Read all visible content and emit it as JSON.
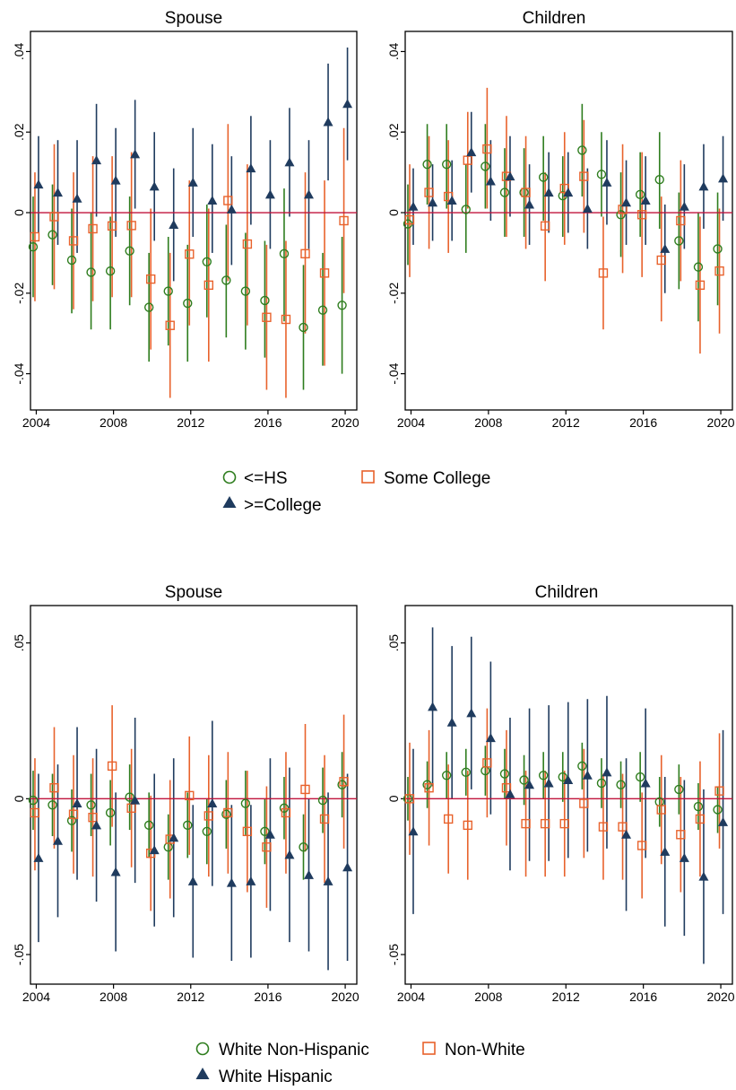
{
  "chart_data": [
    {
      "type": "scatter",
      "title": "Spouse",
      "panel": "education",
      "x": [
        2004,
        2005,
        2006,
        2007,
        2008,
        2009,
        2010,
        2011,
        2012,
        2013,
        2014,
        2015,
        2016,
        2017,
        2018,
        2019,
        2020
      ],
      "xticks": [
        2004,
        2008,
        2012,
        2016,
        2020
      ],
      "xlim": [
        2003.7,
        2020.6
      ],
      "ylim": [
        -0.049,
        0.045
      ],
      "yticks": [
        -0.04,
        -0.02,
        0,
        0.02,
        0.04
      ],
      "ytick_labels": [
        "-.04",
        "-.02",
        "0",
        ".02",
        ".04"
      ],
      "series": [
        {
          "name": "<=HS",
          "marker": "circle",
          "color": "#2e7d1e",
          "values": [
            -0.0085,
            -0.0055,
            -0.0118,
            -0.0148,
            -0.0145,
            -0.0095,
            -0.0235,
            -0.0195,
            -0.0225,
            -0.0122,
            -0.0168,
            -0.0195,
            -0.0218,
            -0.0102,
            -0.0285,
            -0.0242,
            -0.023
          ],
          "lower": [
            -0.021,
            -0.018,
            -0.025,
            -0.029,
            -0.029,
            -0.023,
            -0.037,
            -0.033,
            -0.037,
            -0.026,
            -0.031,
            -0.034,
            -0.036,
            -0.027,
            -0.044,
            -0.038,
            -0.04
          ],
          "upper": [
            0.004,
            0.007,
            0.001,
            0.0,
            -0.001,
            0.004,
            -0.01,
            -0.006,
            -0.008,
            0.002,
            -0.003,
            -0.005,
            -0.007,
            0.006,
            -0.013,
            -0.01,
            -0.006
          ]
        },
        {
          "name": "Some College",
          "marker": "square",
          "color": "#e8622c",
          "values": [
            -0.006,
            -0.001,
            -0.007,
            -0.004,
            -0.0033,
            -0.0032,
            -0.0165,
            -0.028,
            -0.0103,
            -0.018,
            0.003,
            -0.0078,
            -0.026,
            -0.0265,
            -0.0102,
            -0.015,
            -0.002
          ],
          "lower": [
            -0.022,
            -0.019,
            -0.024,
            -0.022,
            -0.021,
            -0.021,
            -0.034,
            -0.046,
            -0.028,
            -0.037,
            -0.017,
            -0.028,
            -0.044,
            -0.046,
            -0.03,
            -0.038,
            -0.02
          ],
          "upper": [
            0.01,
            0.017,
            0.01,
            0.014,
            0.014,
            0.015,
            0.001,
            -0.01,
            0.008,
            0.001,
            0.022,
            0.012,
            -0.008,
            -0.007,
            0.01,
            0.008,
            0.021
          ]
        },
        {
          "name": ">=College",
          "marker": "triangle",
          "color": "#1f3b5e",
          "values": [
            0.007,
            0.005,
            0.0035,
            0.013,
            0.008,
            0.0145,
            0.0065,
            -0.003,
            0.0075,
            0.003,
            0.0008,
            0.011,
            0.0045,
            0.0125,
            0.0045,
            0.0225,
            0.027
          ],
          "lower": [
            -0.005,
            -0.008,
            -0.01,
            -0.001,
            -0.006,
            0.001,
            -0.007,
            -0.017,
            -0.006,
            -0.01,
            -0.013,
            -0.003,
            -0.009,
            -0.001,
            -0.009,
            0.008,
            0.013
          ],
          "upper": [
            0.019,
            0.018,
            0.018,
            0.027,
            0.021,
            0.028,
            0.02,
            0.011,
            0.021,
            0.017,
            0.014,
            0.024,
            0.018,
            0.026,
            0.018,
            0.037,
            0.041
          ]
        }
      ]
    },
    {
      "type": "scatter",
      "title": "Children",
      "panel": "education",
      "x": [
        2004,
        2005,
        2006,
        2007,
        2008,
        2009,
        2010,
        2011,
        2012,
        2013,
        2014,
        2015,
        2016,
        2017,
        2018,
        2019,
        2020
      ],
      "xticks": [
        2004,
        2008,
        2012,
        2016,
        2020
      ],
      "xlim": [
        2003.7,
        2020.6
      ],
      "ylim": [
        -0.049,
        0.045
      ],
      "yticks": [
        -0.04,
        -0.02,
        0,
        0.02,
        0.04
      ],
      "ytick_labels": [
        "-.04",
        "-.02",
        "0",
        ".02",
        ".04"
      ],
      "series": [
        {
          "name": "<=HS",
          "marker": "circle",
          "color": "#2e7d1e",
          "values": [
            -0.0028,
            0.012,
            0.012,
            0.0008,
            0.0115,
            0.005,
            0.005,
            0.0088,
            0.0042,
            0.0155,
            0.0095,
            -0.0005,
            0.0045,
            0.0082,
            -0.007,
            -0.0135,
            -0.009
          ],
          "lower": [
            -0.013,
            0.002,
            0.001,
            -0.01,
            0.001,
            -0.006,
            -0.006,
            -0.002,
            -0.006,
            0.004,
            -0.001,
            -0.011,
            -0.006,
            -0.004,
            -0.019,
            -0.027,
            -0.023
          ],
          "upper": [
            0.007,
            0.022,
            0.022,
            0.012,
            0.022,
            0.016,
            0.016,
            0.019,
            0.014,
            0.027,
            0.02,
            0.01,
            0.015,
            0.02,
            0.005,
            0.0,
            0.005
          ]
        },
        {
          "name": "Some College",
          "marker": "square",
          "color": "#e8622c",
          "values": [
            -0.0018,
            0.005,
            0.004,
            0.013,
            0.0158,
            0.009,
            0.005,
            -0.0033,
            0.006,
            0.009,
            -0.015,
            0.0008,
            -0.0005,
            -0.0118,
            -0.002,
            -0.018,
            -0.0145
          ],
          "lower": [
            -0.016,
            -0.009,
            -0.01,
            0.001,
            0.001,
            -0.006,
            -0.009,
            -0.017,
            -0.008,
            -0.005,
            -0.029,
            -0.015,
            -0.016,
            -0.027,
            -0.017,
            -0.035,
            -0.03
          ],
          "upper": [
            0.012,
            0.019,
            0.018,
            0.025,
            0.031,
            0.024,
            0.019,
            0.01,
            0.02,
            0.023,
            -0.001,
            0.017,
            0.015,
            0.004,
            0.013,
            -0.001,
            0.001
          ]
        },
        {
          "name": ">=College",
          "marker": "triangle",
          "color": "#1f3b5e",
          "values": [
            0.0015,
            0.0025,
            0.003,
            0.015,
            0.0078,
            0.009,
            0.002,
            0.005,
            0.005,
            0.001,
            0.0075,
            0.0025,
            0.003,
            -0.009,
            0.0015,
            0.0065,
            0.0085
          ],
          "lower": [
            -0.008,
            -0.007,
            -0.007,
            0.005,
            -0.002,
            -0.001,
            -0.008,
            -0.005,
            -0.005,
            -0.009,
            -0.003,
            -0.008,
            -0.008,
            -0.02,
            -0.009,
            -0.004,
            -0.002
          ],
          "upper": [
            0.011,
            0.012,
            0.013,
            0.025,
            0.018,
            0.019,
            0.012,
            0.015,
            0.015,
            0.011,
            0.018,
            0.013,
            0.014,
            0.002,
            0.012,
            0.017,
            0.019
          ]
        }
      ]
    },
    {
      "type": "scatter",
      "title": "Spouse",
      "panel": "race",
      "x": [
        2004,
        2005,
        2006,
        2007,
        2008,
        2009,
        2010,
        2011,
        2012,
        2013,
        2014,
        2015,
        2016,
        2017,
        2018,
        2019,
        2020
      ],
      "xticks": [
        2004,
        2008,
        2012,
        2016,
        2020
      ],
      "xlim": [
        2003.7,
        2020.6
      ],
      "ylim": [
        -0.0595,
        0.062
      ],
      "yticks": [
        -0.05,
        0,
        0.05
      ],
      "ytick_labels": [
        "-.05",
        "0",
        ".05"
      ],
      "series": [
        {
          "name": "White Non-Hispanic",
          "marker": "circle",
          "color": "#2e7d1e",
          "values": [
            -0.0005,
            -0.002,
            -0.007,
            -0.002,
            -0.0045,
            0.0005,
            -0.0085,
            -0.0155,
            -0.0085,
            -0.0105,
            -0.005,
            -0.0015,
            -0.0105,
            -0.003,
            -0.0155,
            -0.0005,
            0.0045
          ],
          "lower": [
            -0.01,
            -0.012,
            -0.017,
            -0.012,
            -0.015,
            -0.01,
            -0.019,
            -0.026,
            -0.019,
            -0.021,
            -0.016,
            -0.012,
            -0.021,
            -0.013,
            -0.026,
            -0.011,
            -0.006
          ],
          "upper": [
            0.009,
            0.008,
            0.003,
            0.008,
            0.006,
            0.011,
            0.002,
            -0.005,
            0.002,
            0.0,
            0.006,
            0.009,
            0.0,
            0.007,
            -0.005,
            0.01,
            0.015
          ]
        },
        {
          "name": "Non-White",
          "marker": "square",
          "color": "#e8622c",
          "values": [
            -0.0045,
            0.0035,
            -0.005,
            -0.006,
            0.0105,
            -0.003,
            -0.0175,
            -0.013,
            0.001,
            -0.0055,
            -0.0045,
            -0.0105,
            -0.0155,
            -0.0045,
            0.003,
            -0.0065,
            0.0055
          ],
          "lower": [
            -0.023,
            -0.016,
            -0.024,
            -0.025,
            -0.009,
            -0.022,
            -0.036,
            -0.032,
            -0.018,
            -0.025,
            -0.024,
            -0.03,
            -0.035,
            -0.024,
            -0.017,
            -0.027,
            -0.016
          ],
          "upper": [
            0.013,
            0.023,
            0.014,
            0.013,
            0.03,
            0.016,
            0.001,
            0.006,
            0.02,
            0.014,
            0.015,
            0.009,
            0.004,
            0.015,
            0.024,
            0.014,
            0.027
          ]
        },
        {
          "name": "White Hispanic",
          "marker": "triangle",
          "color": "#1f3b5e",
          "values": [
            -0.019,
            -0.0135,
            -0.0015,
            -0.0085,
            -0.0235,
            -0.0005,
            -0.0165,
            -0.0125,
            -0.0265,
            -0.0015,
            -0.027,
            -0.0265,
            -0.0115,
            -0.018,
            -0.0245,
            -0.0265,
            -0.022
          ],
          "lower": [
            -0.046,
            -0.038,
            -0.026,
            -0.033,
            -0.049,
            -0.027,
            -0.041,
            -0.038,
            -0.051,
            -0.028,
            -0.052,
            -0.051,
            -0.036,
            -0.046,
            -0.049,
            -0.055,
            -0.052
          ],
          "upper": [
            0.008,
            0.011,
            0.023,
            0.016,
            0.002,
            0.026,
            0.008,
            0.013,
            -0.002,
            0.025,
            -0.002,
            -0.002,
            0.013,
            0.01,
            0.0,
            0.002,
            0.008
          ]
        }
      ]
    },
    {
      "type": "scatter",
      "title": "Children",
      "panel": "race",
      "x": [
        2004,
        2005,
        2006,
        2007,
        2008,
        2009,
        2010,
        2011,
        2012,
        2013,
        2014,
        2015,
        2016,
        2017,
        2018,
        2019,
        2020
      ],
      "xticks": [
        2004,
        2008,
        2012,
        2016,
        2020
      ],
      "xlim": [
        2003.7,
        2020.6
      ],
      "ylim": [
        -0.0595,
        0.062
      ],
      "yticks": [
        -0.05,
        0,
        0.05
      ],
      "ytick_labels": [
        "-.05",
        "0",
        ".05"
      ],
      "series": [
        {
          "name": "White Non-Hispanic",
          "marker": "circle",
          "color": "#2e7d1e",
          "values": [
            0.0,
            0.0045,
            0.0075,
            0.0085,
            0.009,
            0.008,
            0.006,
            0.0075,
            0.007,
            0.0105,
            0.005,
            0.0045,
            0.007,
            -0.001,
            0.003,
            -0.0025,
            -0.0035
          ],
          "lower": [
            -0.007,
            -0.003,
            0.0,
            0.001,
            0.001,
            0.0,
            -0.002,
            0.0,
            -0.001,
            0.003,
            -0.003,
            -0.003,
            -0.001,
            -0.009,
            -0.005,
            -0.01,
            -0.011
          ],
          "upper": [
            0.007,
            0.012,
            0.015,
            0.016,
            0.017,
            0.016,
            0.014,
            0.015,
            0.015,
            0.018,
            0.013,
            0.012,
            0.015,
            0.007,
            0.011,
            0.005,
            0.004
          ]
        },
        {
          "name": "Non-White",
          "marker": "square",
          "color": "#e8622c",
          "values": [
            0.0,
            0.0035,
            -0.0065,
            -0.0085,
            0.0115,
            0.0035,
            -0.008,
            -0.008,
            -0.008,
            -0.0015,
            -0.009,
            -0.009,
            -0.015,
            -0.0035,
            -0.0115,
            -0.0065,
            0.0025
          ],
          "lower": [
            -0.018,
            -0.015,
            -0.024,
            -0.026,
            -0.006,
            -0.015,
            -0.025,
            -0.025,
            -0.025,
            -0.019,
            -0.026,
            -0.026,
            -0.032,
            -0.021,
            -0.03,
            -0.025,
            -0.016
          ],
          "upper": [
            0.018,
            0.022,
            0.011,
            0.009,
            0.029,
            0.022,
            0.009,
            0.009,
            0.009,
            0.016,
            0.008,
            0.008,
            0.002,
            0.014,
            0.007,
            0.012,
            0.021
          ]
        },
        {
          "name": "White Hispanic",
          "marker": "triangle",
          "color": "#1f3b5e",
          "values": [
            -0.0105,
            0.0295,
            0.0245,
            0.0275,
            0.0195,
            0.0015,
            0.0045,
            0.005,
            0.006,
            0.0075,
            0.0085,
            -0.0115,
            0.005,
            -0.017,
            -0.019,
            -0.025,
            -0.0075
          ],
          "lower": [
            -0.037,
            0.004,
            0.0,
            0.003,
            -0.005,
            -0.023,
            -0.02,
            -0.02,
            -0.019,
            -0.017,
            -0.016,
            -0.036,
            -0.019,
            -0.041,
            -0.044,
            -0.053,
            -0.037
          ],
          "upper": [
            0.016,
            0.055,
            0.049,
            0.052,
            0.044,
            0.026,
            0.029,
            0.03,
            0.031,
            0.032,
            0.033,
            0.013,
            0.029,
            0.007,
            0.006,
            0.003,
            0.022
          ]
        }
      ]
    }
  ],
  "legends": {
    "education": {
      "items": [
        {
          "label": "<=HS",
          "marker": "circle",
          "color": "#2e7d1e"
        },
        {
          "label": "Some College",
          "marker": "square",
          "color": "#e8622c"
        },
        {
          "label": ">=College",
          "marker": "triangle",
          "color": "#1f3b5e"
        }
      ]
    },
    "race": {
      "items": [
        {
          "label": "White Non-Hispanic",
          "marker": "circle",
          "color": "#2e7d1e"
        },
        {
          "label": "Non-White",
          "marker": "square",
          "color": "#e8622c"
        },
        {
          "label": "White Hispanic",
          "marker": "triangle",
          "color": "#1f3b5e"
        }
      ]
    }
  },
  "colors": {
    "zero_line": "#c0143c",
    "frame": "#000000"
  }
}
